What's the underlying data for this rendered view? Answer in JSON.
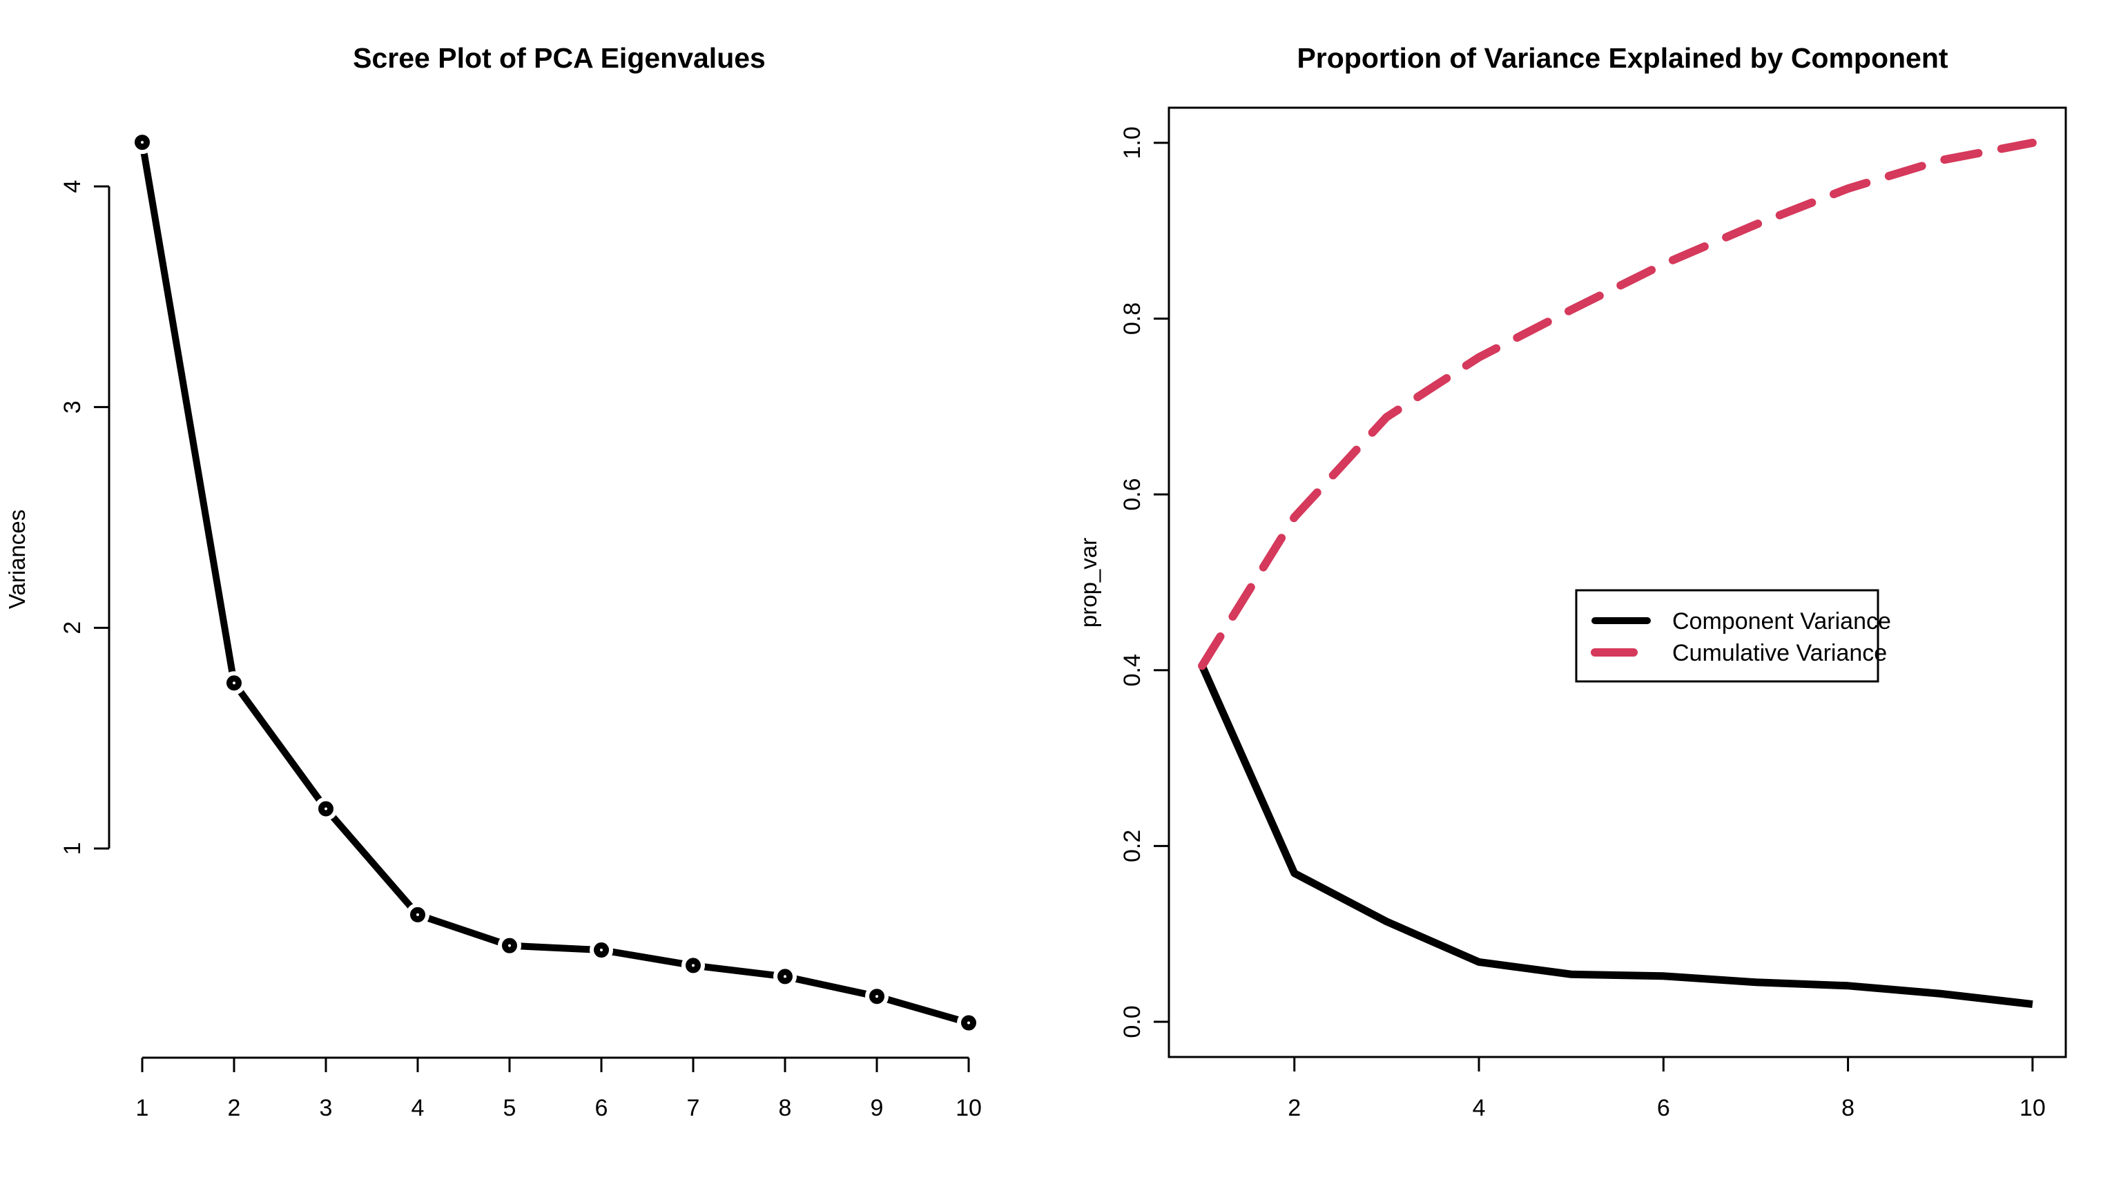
{
  "page": {
    "background": "#ffffff",
    "kind": "R base-graphics figure, two PCA panels"
  },
  "chart_data": [
    {
      "type": "line",
      "title": "Scree Plot of PCA Eigenvalues",
      "xlabel": "",
      "ylabel": "Variances",
      "x": [
        1,
        2,
        3,
        4,
        5,
        6,
        7,
        8,
        9,
        10
      ],
      "series": [
        {
          "name": "Variances",
          "color": "#000000",
          "linestyle": "solid",
          "marker": "open-circle",
          "values": [
            4.2,
            1.75,
            1.18,
            0.7,
            0.56,
            0.54,
            0.47,
            0.42,
            0.33,
            0.21
          ]
        }
      ],
      "x_ticks": [
        1,
        2,
        3,
        4,
        5,
        6,
        7,
        8,
        9,
        10
      ],
      "y_ticks": [
        1,
        2,
        3,
        4
      ],
      "ylim": [
        0.1,
        4.3
      ],
      "grid": false,
      "box": false,
      "legend": null
    },
    {
      "type": "line",
      "title": "Proportion of Variance Explained by Component",
      "xlabel": "",
      "ylabel": "prop_var",
      "x": [
        1,
        2,
        3,
        4,
        5,
        6,
        7,
        8,
        9,
        10
      ],
      "series": [
        {
          "name": "Component Variance",
          "color": "#000000",
          "linestyle": "solid",
          "marker": "none",
          "values": [
            0.405,
            0.169,
            0.114,
            0.068,
            0.054,
            0.052,
            0.045,
            0.041,
            0.032,
            0.02
          ]
        },
        {
          "name": "Cumulative Variance",
          "color": "#D5395B",
          "linestyle": "dashed",
          "marker": "none",
          "values": [
            0.405,
            0.574,
            0.688,
            0.756,
            0.81,
            0.862,
            0.907,
            0.948,
            0.98,
            1.0
          ]
        }
      ],
      "x_ticks": [
        2,
        4,
        6,
        8,
        10
      ],
      "y_ticks": [
        0.0,
        0.2,
        0.4,
        0.6,
        0.8,
        1.0
      ],
      "ylim": [
        -0.04,
        1.04
      ],
      "grid": false,
      "box": true,
      "legend": {
        "position": "center-right",
        "entries": [
          "Component Variance",
          "Cumulative Variance"
        ]
      }
    }
  ]
}
